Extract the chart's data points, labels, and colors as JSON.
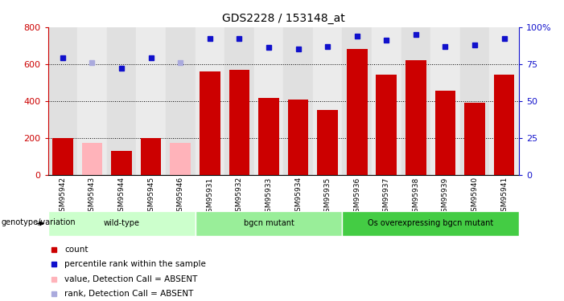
{
  "title": "GDS2228 / 153148_at",
  "samples": [
    "GSM95942",
    "GSM95943",
    "GSM95944",
    "GSM95945",
    "GSM95946",
    "GSM95931",
    "GSM95932",
    "GSM95933",
    "GSM95934",
    "GSM95935",
    "GSM95936",
    "GSM95937",
    "GSM95938",
    "GSM95939",
    "GSM95940",
    "GSM95941"
  ],
  "counts": [
    200,
    170,
    130,
    200,
    170,
    560,
    570,
    415,
    405,
    350,
    680,
    540,
    620,
    455,
    390,
    540
  ],
  "absent_flags": [
    false,
    true,
    false,
    false,
    true,
    false,
    false,
    false,
    false,
    false,
    false,
    false,
    false,
    false,
    false,
    false
  ],
  "percentile_ranks": [
    79,
    76,
    72,
    79,
    76,
    92,
    92,
    86,
    85,
    87,
    94,
    91,
    95,
    87,
    88,
    92
  ],
  "absent_rank_flags": [
    false,
    true,
    false,
    false,
    true,
    false,
    false,
    false,
    false,
    false,
    false,
    false,
    false,
    false,
    false,
    false
  ],
  "ylim_left": [
    0,
    800
  ],
  "ylim_right": [
    0,
    100
  ],
  "yticks_left": [
    0,
    200,
    400,
    600,
    800
  ],
  "yticks_right": [
    0,
    25,
    50,
    75,
    100
  ],
  "bar_color_present": "#cc0000",
  "bar_color_absent": "#ffb3ba",
  "dot_color_present": "#1111cc",
  "dot_color_absent": "#aaaadd",
  "col_bg_odd": "#e0e0e0",
  "col_bg_even": "#ebebeb",
  "groups": [
    {
      "label": "wild-type",
      "start": 0,
      "end": 5,
      "color": "#ccffcc"
    },
    {
      "label": "bgcn mutant",
      "start": 5,
      "end": 10,
      "color": "#99ee99"
    },
    {
      "label": "Os overexpressing bgcn mutant",
      "start": 10,
      "end": 16,
      "color": "#44cc44"
    }
  ],
  "group_header": "genotype/variation",
  "legend_items": [
    {
      "label": "count",
      "color": "#cc0000"
    },
    {
      "label": "percentile rank within the sample",
      "color": "#1111cc"
    },
    {
      "label": "value, Detection Call = ABSENT",
      "color": "#ffb3ba"
    },
    {
      "label": "rank, Detection Call = ABSENT",
      "color": "#aaaadd"
    }
  ],
  "gridlines": [
    200,
    400,
    600
  ]
}
